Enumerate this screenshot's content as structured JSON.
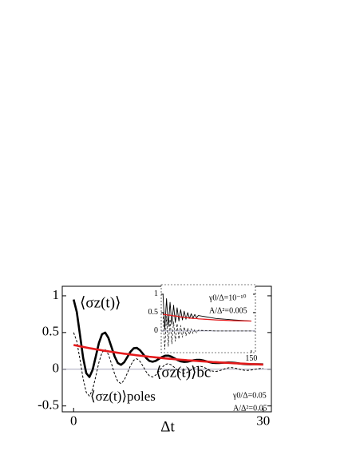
{
  "chart_data": [
    {
      "type": "line",
      "xlabel": "Δt",
      "xlim": [
        -1.8,
        31.3
      ],
      "ylim": [
        -0.58,
        1.13
      ],
      "xticks": [
        0,
        30
      ],
      "yticks": [
        1,
        0.5,
        0,
        -0.5
      ],
      "x": [
        0,
        0.5,
        1,
        1.5,
        2,
        2.5,
        3,
        3.5,
        4,
        4.5,
        5,
        5.5,
        6,
        6.5,
        7,
        7.5,
        8,
        8.5,
        9,
        9.5,
        10,
        10.5,
        11,
        11.5,
        12,
        12.5,
        13,
        13.5,
        14,
        14.5,
        15,
        15.5,
        16,
        16.5,
        17,
        17.5,
        18,
        18.5,
        19,
        19.5,
        20,
        20.5,
        21,
        21.5,
        22,
        22.5,
        23,
        23.5,
        24,
        24.5,
        25,
        25.5,
        26,
        26.5,
        27,
        27.5,
        28,
        28.5,
        29,
        29.5,
        30
      ],
      "series": [
        {
          "name": "⟨σz(t)⟩",
          "color": "#000000",
          "style": "solid",
          "values": [
            0.95,
            0.779,
            0.472,
            0.158,
            -0.054,
            -0.106,
            -0.01,
            0.171,
            0.357,
            0.478,
            0.499,
            0.428,
            0.301,
            0.172,
            0.084,
            0.06,
            0.095,
            0.166,
            0.238,
            0.285,
            0.291,
            0.259,
            0.206,
            0.151,
            0.113,
            0.102,
            0.114,
            0.141,
            0.167,
            0.184,
            0.185,
            0.17,
            0.147,
            0.123,
            0.106,
            0.1,
            0.103,
            0.112,
            0.122,
            0.128,
            0.127,
            0.119,
            0.108,
            0.097,
            0.088,
            0.085,
            0.085,
            0.088,
            0.09,
            0.092,
            0.09,
            0.086,
            0.081,
            0.075,
            0.071,
            0.069,
            0.067,
            0.068,
            0.068,
            0.067,
            0.066
          ]
        },
        {
          "name": "⟨σz(t)⟩poles",
          "color": "#000000",
          "style": "dashed",
          "values": [
            0.5,
            0.38,
            0.136,
            -0.128,
            -0.315,
            -0.365,
            -0.277,
            -0.1,
            0.094,
            0.23,
            0.268,
            0.203,
            0.073,
            -0.069,
            -0.168,
            -0.196,
            -0.149,
            -0.053,
            0.05,
            0.123,
            0.143,
            0.108,
            0.039,
            -0.037,
            -0.09,
            -0.105,
            -0.079,
            -0.028,
            0.027,
            0.066,
            0.076,
            0.058,
            0.021,
            -0.019,
            -0.049,
            -0.056,
            -0.043,
            -0.015,
            0.014,
            0.035,
            0.041,
            0.031,
            0.011,
            -0.011,
            -0.026,
            -0.03,
            -0.023,
            -0.008,
            0.008,
            0.019,
            0.022,
            0.016,
            0.006,
            -0.006,
            -0.014,
            -0.016,
            -0.012,
            -0.004,
            0.004,
            0.01,
            0.011
          ]
        },
        {
          "name": "⟨σz(t)⟩bc",
          "color": "#e41a1c",
          "style": "solid",
          "values": [
            0.33,
            0.321,
            0.312,
            0.304,
            0.295,
            0.287,
            0.28,
            0.272,
            0.265,
            0.257,
            0.25,
            0.244,
            0.237,
            0.231,
            0.224,
            0.218,
            0.212,
            0.207,
            0.201,
            0.196,
            0.19,
            0.185,
            0.18,
            0.175,
            0.17,
            0.166,
            0.161,
            0.157,
            0.152,
            0.148,
            0.144,
            0.14,
            0.136,
            0.133,
            0.129,
            0.126,
            0.122,
            0.119,
            0.116,
            0.113,
            0.11,
            0.107,
            0.104,
            0.101,
            0.098,
            0.096,
            0.093,
            0.091,
            0.088,
            0.086,
            0.083,
            0.081,
            0.079,
            0.077,
            0.075,
            0.073,
            0.07,
            0.069,
            0.067,
            0.065,
            0.063
          ]
        }
      ],
      "annotations": [
        "γ0/Δ=0.05",
        "A/Δ²=0.05"
      ]
    },
    {
      "type": "line",
      "xlim": [
        -3,
        157
      ],
      "ylim": [
        -0.59,
        1.26
      ],
      "xticks": [
        150
      ],
      "yticks": [
        1,
        0.5,
        0
      ],
      "x": [
        0,
        3,
        6,
        9,
        12,
        15,
        18,
        21,
        24,
        27,
        30,
        33,
        36,
        39,
        42,
        45,
        48,
        51,
        54,
        57,
        60,
        90,
        120,
        150
      ],
      "series": [
        {
          "color": "#000000",
          "style": "solid",
          "values": [
            1.0,
            0.05,
            0.88,
            0.12,
            0.78,
            0.18,
            0.7,
            0.23,
            0.63,
            0.27,
            0.58,
            0.3,
            0.54,
            0.32,
            0.5,
            0.34,
            0.47,
            0.35,
            0.45,
            0.36,
            0.42,
            0.34,
            0.3,
            0.27
          ]
        },
        {
          "color": "#000000",
          "style": "dashed",
          "values": [
            0.5,
            -0.5,
            0.4,
            -0.42,
            0.32,
            -0.35,
            0.25,
            -0.28,
            0.2,
            -0.22,
            0.15,
            -0.17,
            0.11,
            -0.13,
            0.08,
            -0.1,
            0.06,
            -0.07,
            0.04,
            -0.05,
            0.02,
            0,
            0,
            0
          ]
        },
        {
          "color": "#e41a1c",
          "style": "solid",
          "values": [
            0.45,
            0.45,
            0.44,
            0.43,
            0.43,
            0.42,
            0.41,
            0.41,
            0.4,
            0.39,
            0.38,
            0.38,
            0.37,
            0.36,
            0.36,
            0.35,
            0.35,
            0.34,
            0.34,
            0.34,
            0.33,
            0.3,
            0.28,
            0.27
          ]
        }
      ],
      "annotations": [
        "γ0/Δ=10⁻¹⁰",
        "A/Δ²=0.005"
      ]
    }
  ]
}
